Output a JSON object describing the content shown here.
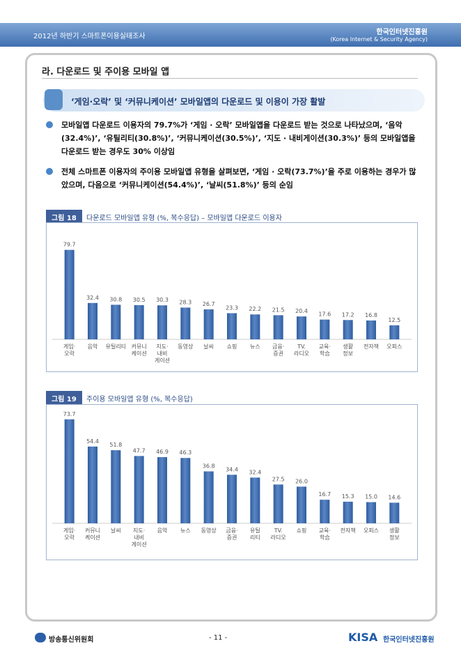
{
  "header": {
    "title": "2012년 하반기 스마트폰이용실태조사",
    "org": "한국인터넷진흥원",
    "org_en": "(Korea Internet & Security Agency)"
  },
  "section": {
    "title": "라. 다운로드 및 주이용 모바일 앱"
  },
  "highlight": {
    "text": "‘게임·오락’ 및 ‘커뮤니케이션’ 모바일앱의 다운로드 및 이용이 가장 활발"
  },
  "bullets": [
    "모바일앱 다운로드 이용자의 79.7%가 ‘게임 · 오락’ 모바일앱을 다운로드 받는 것으로 나타났으며, ‘음악(32.4%)’, ‘유틸리티(30.8%)’, ‘커뮤니케이션(30.5%)’, ‘지도 · 내비게이션(30.3%)’ 등의 모바일앱을 다운로드 받는 경우도 30% 이상임",
    "전체 스마트폰 이용자의 주이용 모바일앱 유형을 살펴보면, ‘게임 · 오락(73.7%)’을 주로 이용하는 경우가 많았으며, 다음으로 ‘커뮤니케이션(54.4%)’, ‘날씨(51.8%)’ 등의 순임"
  ],
  "chart_data": [
    {
      "type": "bar",
      "label": "그림 18",
      "title": "다운로드 모바일앱 유형 (%, 복수응답) – 모바일앱 다운로드 이용자",
      "color": "#5b86c6",
      "categories": [
        "게임·\n오락",
        "음악",
        "유틸리티",
        "커뮤니\n케이션",
        "지도·\n내비\n게이션",
        "동영상",
        "날씨",
        "쇼핑",
        "뉴스",
        "금융·\n증권",
        "TV.\n라디오",
        "교육·\n학습",
        "생활\n정보",
        "전자책",
        "오피스"
      ],
      "values": [
        79.7,
        32.4,
        30.8,
        30.5,
        30.3,
        28.3,
        26.7,
        23.3,
        22.2,
        21.5,
        20.4,
        17.6,
        17.2,
        16.8,
        12.5
      ],
      "ylim": [
        0,
        90
      ]
    },
    {
      "type": "bar",
      "label": "그림 19",
      "title": "주이용 모바일앱 유형 (%, 복수응답)",
      "color": "#5b86c6",
      "categories": [
        "게임·\n오락",
        "커뮤니\n케이션",
        "날씨",
        "지도·\n내비\n게이션",
        "음악",
        "뉴스",
        "동영상",
        "금융·\n증권",
        "유틸\n리티",
        "TV.\n라디오",
        "쇼핑",
        "교육·\n학습",
        "전자책",
        "오피스",
        "생활\n정보"
      ],
      "values": [
        73.7,
        54.4,
        51.8,
        47.7,
        46.9,
        46.3,
        36.8,
        34.4,
        32.4,
        27.5,
        26.0,
        16.7,
        15.3,
        15.0,
        14.6
      ],
      "value_labels": [
        "73.7",
        "54.4",
        "51.8",
        "47.7",
        "46.9",
        "46.3",
        "36.8",
        "34.4",
        "32.4",
        "27.5",
        "26.0",
        "16.7",
        "15.3",
        "15.0",
        "14.6"
      ],
      "ylim": [
        0,
        80
      ]
    }
  ],
  "footer": {
    "left": "방송통신위원회",
    "page": "- 11 -",
    "right_logo": "KISA",
    "right": "한국인터넷진흥원"
  }
}
